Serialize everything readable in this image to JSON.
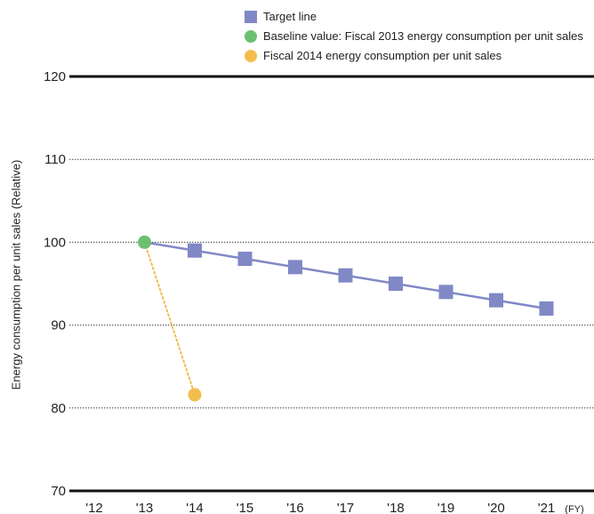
{
  "chart_data": {
    "type": "line",
    "ylabel": "Energy consumption per unit sales (Relative)",
    "xunit": "(FY)",
    "ylim": [
      70,
      120
    ],
    "yticks": [
      70,
      80,
      90,
      100,
      110,
      120
    ],
    "categories": [
      "'12",
      "'13",
      "'14",
      "'15",
      "'16",
      "'17",
      "'18",
      "'19",
      "'20",
      "'21"
    ],
    "legend_position": "top-right",
    "series": [
      {
        "name": "Target line",
        "marker": "square",
        "line": "solid",
        "color": "#8088c6",
        "points": [
          {
            "x": "'13",
            "y": 100
          },
          {
            "x": "'14",
            "y": 99
          },
          {
            "x": "'15",
            "y": 98
          },
          {
            "x": "'16",
            "y": 97
          },
          {
            "x": "'17",
            "y": 96
          },
          {
            "x": "'18",
            "y": 95
          },
          {
            "x": "'19",
            "y": 94
          },
          {
            "x": "'20",
            "y": 93
          },
          {
            "x": "'21",
            "y": 92
          }
        ]
      },
      {
        "name": "Baseline value: Fiscal 2013 energy consumption per unit sales",
        "marker": "circle",
        "color": "#6cc070",
        "points": [
          {
            "x": "'13",
            "y": 100
          }
        ]
      },
      {
        "name": "Fiscal 2014 energy consumption per unit sales",
        "marker": "circle",
        "line": "dotted",
        "color": "#f3bd4d",
        "points": [
          {
            "x": "'13",
            "y": 100
          },
          {
            "x": "'14",
            "y": 81.6
          }
        ]
      }
    ]
  }
}
